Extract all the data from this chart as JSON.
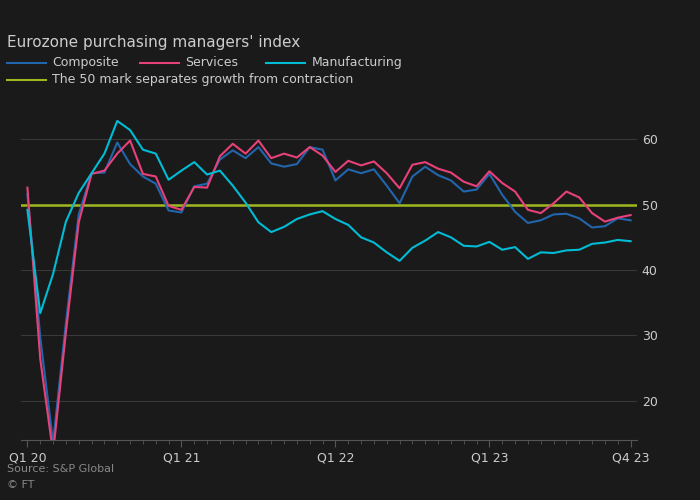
{
  "title": "Eurozone purchasing managers' index",
  "source": "Source: S&P Global",
  "copyright": "© FT",
  "bg_color": "#1a1a1a",
  "text_color": "#cccccc",
  "grid_color": "#3a3a3a",
  "spine_color": "#555555",
  "ylim": [
    14,
    66
  ],
  "yticks": [
    20,
    30,
    40,
    50,
    60
  ],
  "line50_label": "The 50 mark separates growth from contraction",
  "colors": {
    "composite": "#2166ac",
    "services": "#e8417a",
    "manufacturing": "#00bcd4",
    "line50": "#a0b820"
  },
  "x_tick_labels": [
    "Q1 20",
    "Q1 21",
    "Q1 22",
    "Q1 23",
    "Q4 23"
  ],
  "x_tick_positions": [
    0,
    12,
    24,
    36,
    47
  ],
  "composite": [
    51.6,
    29.7,
    13.6,
    31.9,
    48.5,
    54.8,
    54.9,
    59.5,
    56.2,
    54.3,
    53.2,
    49.1,
    48.8,
    52.8,
    53.2,
    56.9,
    58.3,
    57.1,
    58.8,
    56.3,
    55.8,
    56.2,
    58.8,
    58.4,
    53.7,
    55.4,
    54.8,
    55.4,
    52.9,
    50.2,
    54.3,
    55.8,
    54.5,
    53.7,
    52.0,
    52.3,
    54.7,
    51.5,
    48.9,
    47.2,
    47.6,
    48.5,
    48.6,
    47.9,
    46.5,
    46.7,
    47.9,
    47.6
  ],
  "services": [
    52.6,
    26.4,
    12.0,
    30.5,
    47.3,
    54.7,
    55.2,
    57.8,
    59.8,
    54.7,
    54.3,
    49.8,
    49.2,
    52.7,
    52.6,
    57.4,
    59.3,
    57.8,
    59.8,
    57.1,
    57.8,
    57.2,
    58.8,
    57.5,
    55.0,
    56.7,
    56.0,
    56.6,
    54.8,
    52.5,
    56.1,
    56.5,
    55.5,
    54.9,
    53.5,
    52.8,
    55.1,
    53.3,
    52.0,
    49.2,
    48.7,
    50.2,
    52.0,
    51.1,
    48.7,
    47.4,
    48.0,
    48.4
  ],
  "manufacturing": [
    49.2,
    33.4,
    39.4,
    47.4,
    51.8,
    54.8,
    57.8,
    62.8,
    61.4,
    58.4,
    57.8,
    53.8,
    55.2,
    56.5,
    54.6,
    55.2,
    52.9,
    50.3,
    47.3,
    45.8,
    46.6,
    47.8,
    48.5,
    49.0,
    47.8,
    46.9,
    45.0,
    44.2,
    42.7,
    41.4,
    43.4,
    44.5,
    45.8,
    45.0,
    43.7,
    43.6,
    44.3,
    43.1,
    43.5,
    41.7,
    42.7,
    42.6,
    43.0,
    43.1,
    44.0,
    44.2,
    44.6,
    44.4
  ],
  "n_points": 48
}
